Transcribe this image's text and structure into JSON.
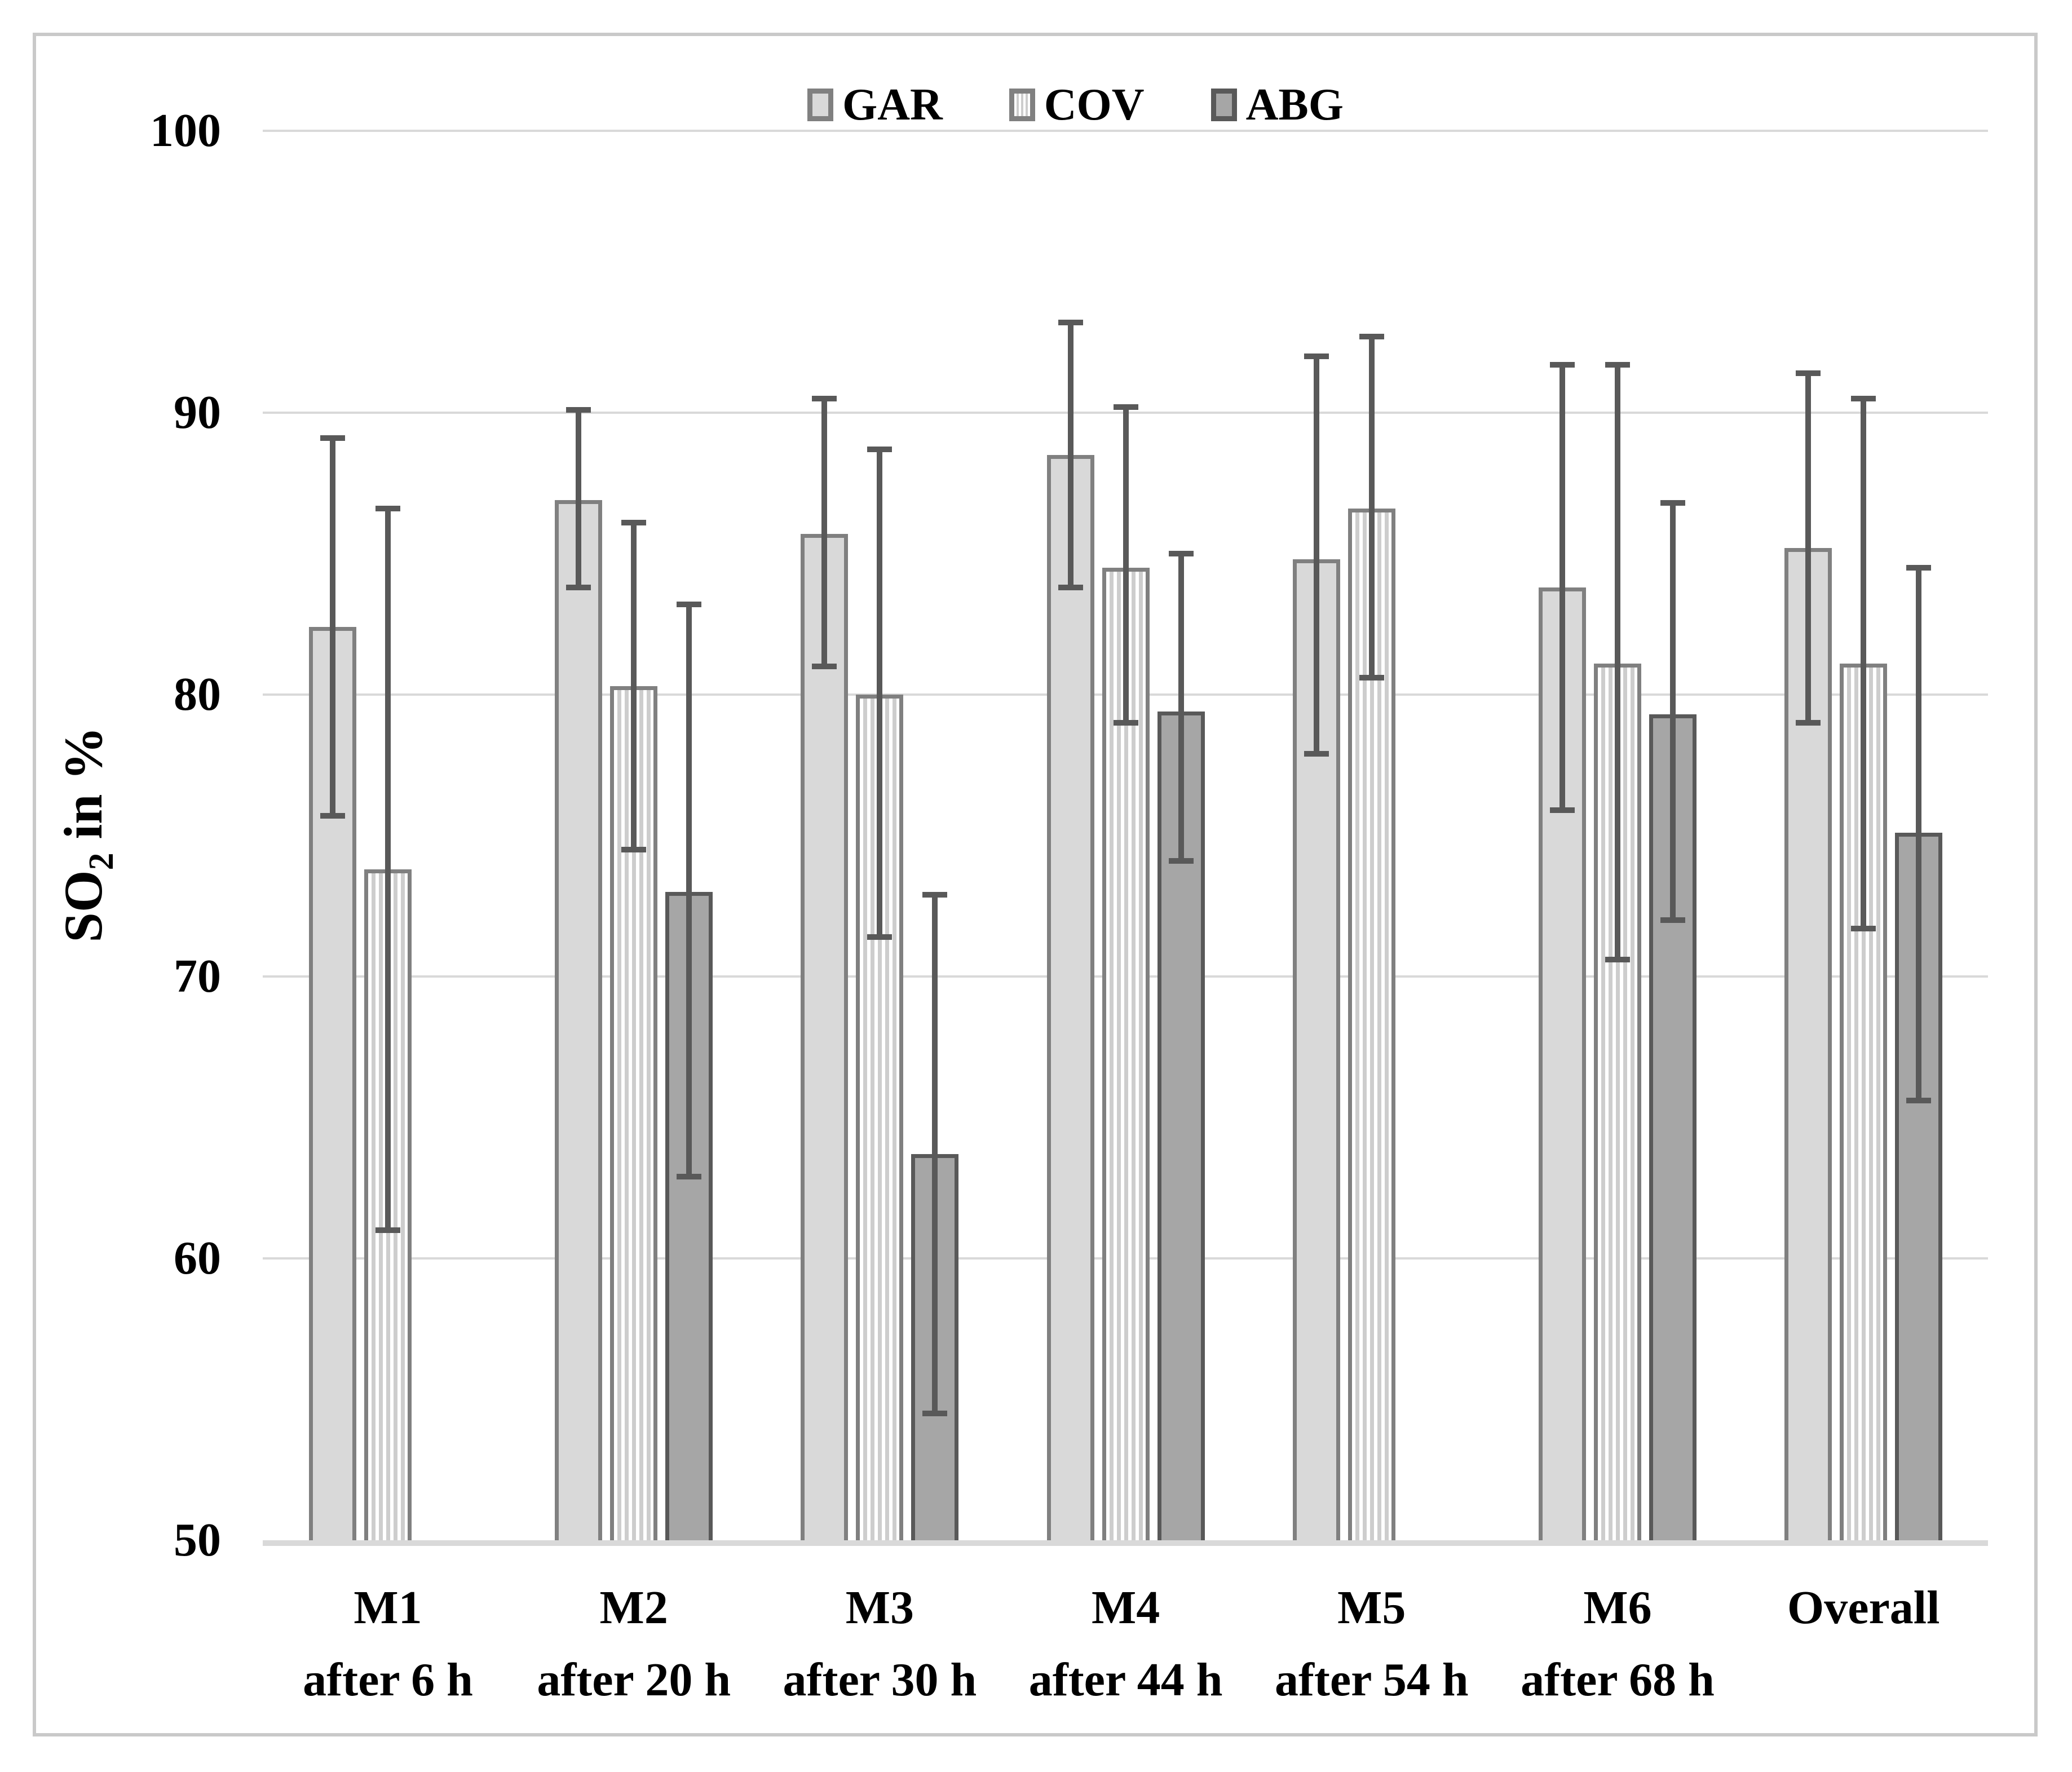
{
  "legend": {
    "items": [
      {
        "label": "GAR"
      },
      {
        "label": "COV"
      },
      {
        "label": "ABG"
      }
    ]
  },
  "y_axis": {
    "title_prefix": "SO",
    "title_sub": "2",
    "title_suffix": " in %",
    "ticks": [
      100,
      90,
      80,
      70,
      60,
      50
    ]
  },
  "x_axis": {
    "categories": [
      {
        "line1": "M1",
        "line2": "after 6 h"
      },
      {
        "line1": "M2",
        "line2": "after 20 h"
      },
      {
        "line1": "M3",
        "line2": "after 30 h"
      },
      {
        "line1": "M4",
        "line2": "after 44 h"
      },
      {
        "line1": "M5",
        "line2": "after 54 h"
      },
      {
        "line1": "M6",
        "line2": "after 68 h"
      },
      {
        "line1": "Overall",
        "line2": ""
      }
    ]
  },
  "chart_data": {
    "type": "bar",
    "title": "",
    "xlabel": "",
    "ylabel": "SO2 in %",
    "ylim": [
      50,
      100
    ],
    "grid": true,
    "legend_position": "top",
    "gridline_color": "#d9d9d9",
    "error_color": "#595959",
    "categories": [
      "M1 after 6 h",
      "M2 after 20 h",
      "M3 after 30 h",
      "M4 after 44 h",
      "M5 after 54 h",
      "M6 after 68 h",
      "Overall"
    ],
    "series": [
      {
        "name": "GAR",
        "pattern": "solid",
        "fill": "#d9d9d9",
        "stripe": null,
        "border": "#808080",
        "values": [
          82.4,
          86.9,
          85.7,
          88.5,
          84.8,
          83.8,
          85.2
        ],
        "error_low": [
          75.7,
          83.8,
          81.0,
          83.8,
          77.9,
          75.9,
          79.0
        ],
        "error_high": [
          89.1,
          90.1,
          90.5,
          93.2,
          92.0,
          91.7,
          91.4
        ]
      },
      {
        "name": "COV",
        "pattern": "vertical-stripes",
        "fill": "#ffffff",
        "stripe": "#cdcdcd",
        "border": "#808080",
        "values": [
          73.8,
          80.3,
          80.0,
          84.5,
          86.6,
          81.1,
          81.1
        ],
        "error_low": [
          61.0,
          74.5,
          71.4,
          79.0,
          80.6,
          70.6,
          71.7
        ],
        "error_high": [
          86.6,
          86.1,
          88.7,
          90.2,
          92.7,
          91.7,
          90.5
        ]
      },
      {
        "name": "ABG",
        "pattern": "solid",
        "fill": "#a6a6a6",
        "stripe": null,
        "border": "#595959",
        "values": [
          null,
          73.0,
          63.7,
          79.4,
          null,
          79.3,
          75.1
        ],
        "error_low": [
          null,
          62.9,
          54.5,
          74.1,
          null,
          72.0,
          65.6
        ],
        "error_high": [
          null,
          83.2,
          72.9,
          85.0,
          null,
          86.8,
          84.5
        ]
      }
    ]
  }
}
